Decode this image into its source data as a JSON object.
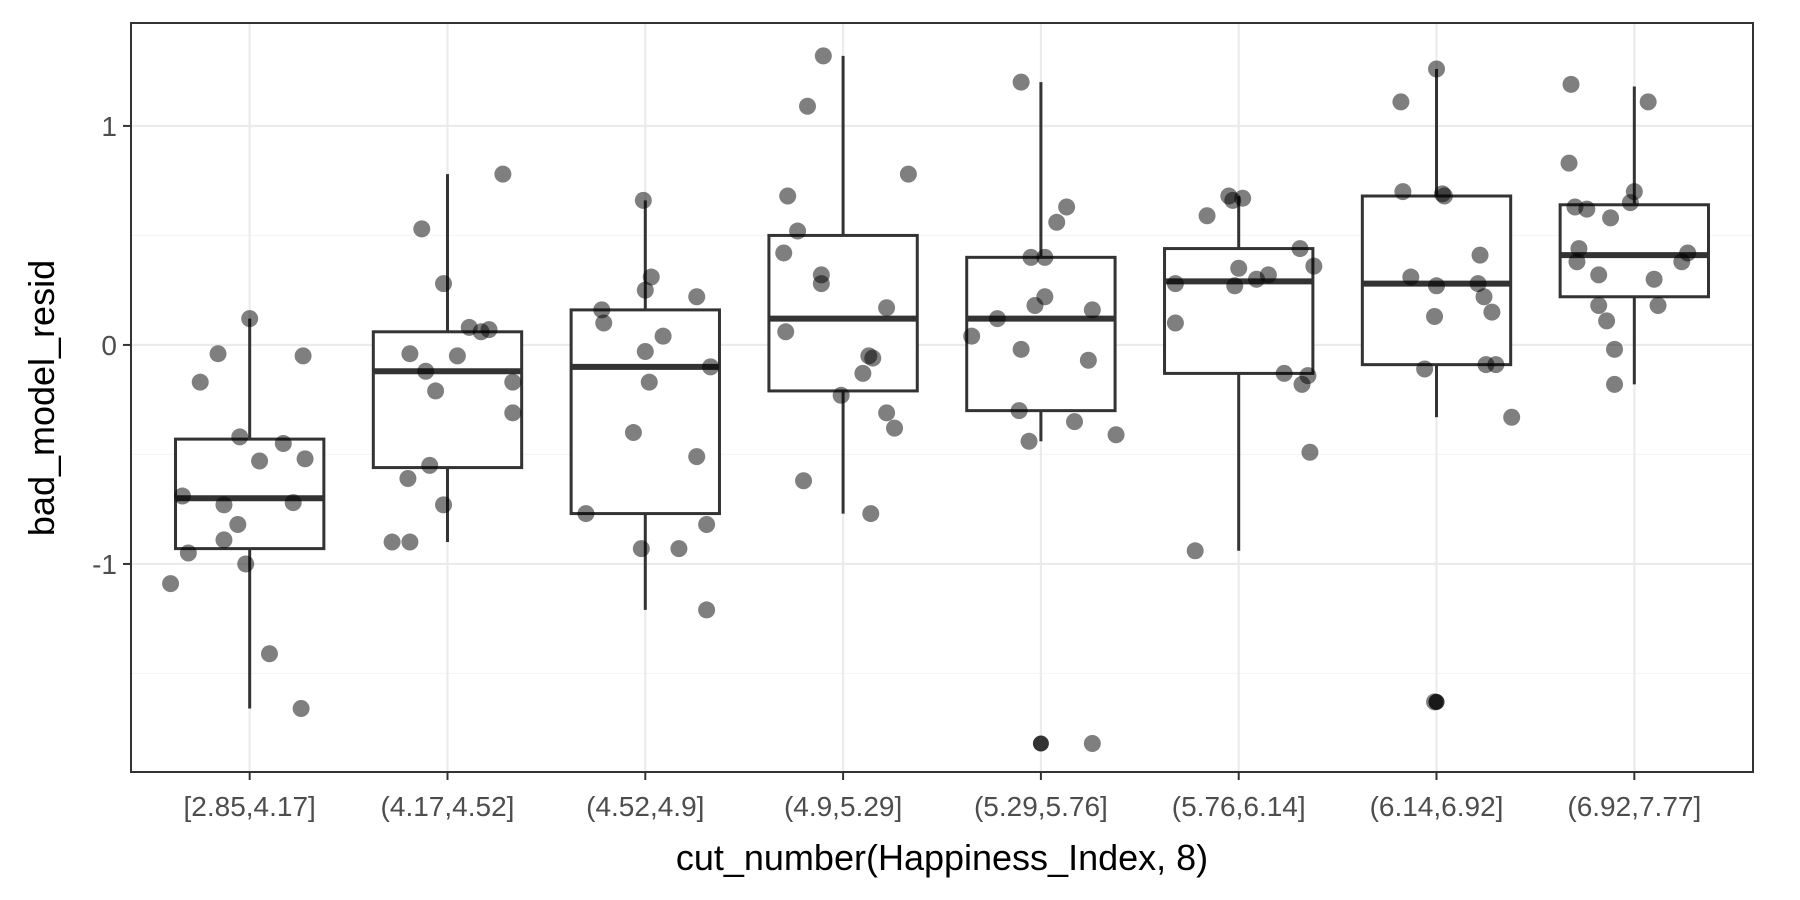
{
  "chart_data": {
    "type": "boxplot",
    "xlabel": "cut_number(Happiness_Index, 8)",
    "ylabel": "bad_model_resid",
    "ylim": [
      -1.95,
      1.47
    ],
    "yticks": [
      1,
      0,
      -1
    ],
    "ytick_labels": [
      "1",
      "0",
      "-1"
    ],
    "grid": true,
    "categories": [
      "[2.85,4.17]",
      "(4.17,4.52]",
      "(4.52,4.9]",
      "(4.9,5.29]",
      "(5.29,5.76]",
      "(5.76,6.14]",
      "(6.14,6.92]",
      "(6.92,7.77]"
    ],
    "boxes": [
      {
        "whisker_low": -1.66,
        "q1": -0.93,
        "median": -0.7,
        "q3": -0.43,
        "whisker_high": 0.12
      },
      {
        "whisker_low": -0.9,
        "q1": -0.56,
        "median": -0.12,
        "q3": 0.06,
        "whisker_high": 0.78
      },
      {
        "whisker_low": -1.21,
        "q1": -0.77,
        "median": -0.1,
        "q3": 0.16,
        "whisker_high": 0.66
      },
      {
        "whisker_low": -0.77,
        "q1": -0.21,
        "median": 0.12,
        "q3": 0.5,
        "whisker_high": 1.32
      },
      {
        "whisker_low": -0.44,
        "q1": -0.3,
        "median": 0.12,
        "q3": 0.4,
        "whisker_high": 1.2
      },
      {
        "whisker_low": -0.94,
        "q1": -0.13,
        "median": 0.29,
        "q3": 0.44,
        "whisker_high": 0.68
      },
      {
        "whisker_low": -0.33,
        "q1": -0.09,
        "median": 0.28,
        "q3": 0.68,
        "whisker_high": 1.26
      },
      {
        "whisker_low": -0.18,
        "q1": 0.22,
        "median": 0.41,
        "q3": 0.64,
        "whisker_high": 1.18
      }
    ],
    "outliers": [
      {
        "group": 4,
        "y": -1.82
      },
      {
        "group": 6,
        "y": -1.63
      }
    ],
    "points": [
      {
        "x": 0.6,
        "y": -1.09
      },
      {
        "x": 0.66,
        "y": -0.69
      },
      {
        "x": 0.69,
        "y": -0.95
      },
      {
        "x": 0.75,
        "y": -0.17
      },
      {
        "x": 0.87,
        "y": -0.73
      },
      {
        "x": 0.87,
        "y": -0.89
      },
      {
        "x": 0.94,
        "y": -0.82
      },
      {
        "x": 0.95,
        "y": -0.42
      },
      {
        "x": 1.0,
        "y": 0.12
      },
      {
        "x": 0.84,
        "y": -0.04
      },
      {
        "x": 0.98,
        "y": -1.0
      },
      {
        "x": 1.05,
        "y": -0.53
      },
      {
        "x": 1.1,
        "y": -1.41
      },
      {
        "x": 1.17,
        "y": -0.45
      },
      {
        "x": 1.22,
        "y": -0.72
      },
      {
        "x": 1.26,
        "y": -1.66
      },
      {
        "x": 1.27,
        "y": -0.05
      },
      {
        "x": 1.28,
        "y": -0.52
      },
      {
        "x": 1.72,
        "y": -0.9
      },
      {
        "x": 1.81,
        "y": -0.9
      },
      {
        "x": 1.8,
        "y": -0.61
      },
      {
        "x": 1.81,
        "y": -0.04
      },
      {
        "x": 1.87,
        "y": 0.53
      },
      {
        "x": 1.91,
        "y": -0.55
      },
      {
        "x": 1.89,
        "y": -0.12
      },
      {
        "x": 1.94,
        "y": -0.21
      },
      {
        "x": 1.98,
        "y": -0.73
      },
      {
        "x": 1.98,
        "y": 0.28
      },
      {
        "x": 2.05,
        "y": -0.05
      },
      {
        "x": 2.11,
        "y": 0.08
      },
      {
        "x": 2.17,
        "y": 0.06
      },
      {
        "x": 2.21,
        "y": 0.07
      },
      {
        "x": 2.28,
        "y": 0.78
      },
      {
        "x": 2.33,
        "y": -0.17
      },
      {
        "x": 2.33,
        "y": -0.31
      },
      {
        "x": 2.7,
        "y": -0.77
      },
      {
        "x": 2.78,
        "y": 0.16
      },
      {
        "x": 2.79,
        "y": 0.1
      },
      {
        "x": 2.94,
        "y": -0.4
      },
      {
        "x": 2.99,
        "y": 0.66
      },
      {
        "x": 2.98,
        "y": -0.93
      },
      {
        "x": 3.0,
        "y": -0.03
      },
      {
        "x": 3.0,
        "y": 0.25
      },
      {
        "x": 3.03,
        "y": 0.31
      },
      {
        "x": 3.02,
        "y": -0.17
      },
      {
        "x": 3.09,
        "y": 0.04
      },
      {
        "x": 3.17,
        "y": -0.93
      },
      {
        "x": 3.26,
        "y": 0.22
      },
      {
        "x": 3.26,
        "y": -0.51
      },
      {
        "x": 3.31,
        "y": -0.82
      },
      {
        "x": 3.31,
        "y": -1.21
      },
      {
        "x": 3.33,
        "y": -0.1
      },
      {
        "x": 3.7,
        "y": 0.42
      },
      {
        "x": 3.71,
        "y": 0.06
      },
      {
        "x": 3.72,
        "y": 0.68
      },
      {
        "x": 3.8,
        "y": -0.62
      },
      {
        "x": 3.77,
        "y": 0.52
      },
      {
        "x": 3.82,
        "y": 1.09
      },
      {
        "x": 3.9,
        "y": 1.32
      },
      {
        "x": 3.89,
        "y": 0.32
      },
      {
        "x": 3.89,
        "y": 0.28
      },
      {
        "x": 3.99,
        "y": -0.23
      },
      {
        "x": 4.1,
        "y": -0.13
      },
      {
        "x": 4.13,
        "y": -0.05
      },
      {
        "x": 4.15,
        "y": -0.06
      },
      {
        "x": 4.14,
        "y": -0.77
      },
      {
        "x": 4.22,
        "y": 0.17
      },
      {
        "x": 4.22,
        "y": -0.31
      },
      {
        "x": 4.26,
        "y": -0.38
      },
      {
        "x": 4.33,
        "y": 0.78
      },
      {
        "x": 4.65,
        "y": 0.04
      },
      {
        "x": 4.78,
        "y": 0.12
      },
      {
        "x": 4.9,
        "y": -0.02
      },
      {
        "x": 4.89,
        "y": -0.3
      },
      {
        "x": 4.9,
        "y": 1.2
      },
      {
        "x": 4.94,
        "y": -0.44
      },
      {
        "x": 4.95,
        "y": 0.4
      },
      {
        "x": 4.97,
        "y": 0.18
      },
      {
        "x": 5.02,
        "y": 0.22
      },
      {
        "x": 5.02,
        "y": 0.4
      },
      {
        "x": 5.08,
        "y": 0.56
      },
      {
        "x": 5.13,
        "y": 0.63
      },
      {
        "x": 5.17,
        "y": -0.35
      },
      {
        "x": 5.26,
        "y": 0.16
      },
      {
        "x": 5.24,
        "y": -0.07
      },
      {
        "x": 5.26,
        "y": -1.82
      },
      {
        "x": 5.38,
        "y": -0.41
      },
      {
        "x": 5.68,
        "y": 0.28
      },
      {
        "x": 5.68,
        "y": 0.1
      },
      {
        "x": 5.78,
        "y": -0.94
      },
      {
        "x": 5.84,
        "y": 0.59
      },
      {
        "x": 5.95,
        "y": 0.68
      },
      {
        "x": 5.97,
        "y": 0.66
      },
      {
        "x": 6.0,
        "y": 0.35
      },
      {
        "x": 5.98,
        "y": 0.27
      },
      {
        "x": 6.02,
        "y": 0.67
      },
      {
        "x": 6.09,
        "y": 0.3
      },
      {
        "x": 6.15,
        "y": 0.32
      },
      {
        "x": 6.31,
        "y": 0.44
      },
      {
        "x": 6.23,
        "y": -0.13
      },
      {
        "x": 6.32,
        "y": -0.18
      },
      {
        "x": 6.35,
        "y": -0.14
      },
      {
        "x": 6.36,
        "y": -0.49
      },
      {
        "x": 6.38,
        "y": 0.36
      },
      {
        "x": 6.83,
        "y": 0.7
      },
      {
        "x": 6.82,
        "y": 1.11
      },
      {
        "x": 6.87,
        "y": 0.31
      },
      {
        "x": 6.94,
        "y": -0.11
      },
      {
        "x": 6.99,
        "y": -1.63
      },
      {
        "x": 7.0,
        "y": 1.26
      },
      {
        "x": 7.03,
        "y": 0.69
      },
      {
        "x": 7.04,
        "y": 0.68
      },
      {
        "x": 6.99,
        "y": 0.13
      },
      {
        "x": 7.0,
        "y": 0.27
      },
      {
        "x": 7.22,
        "y": 0.41
      },
      {
        "x": 7.21,
        "y": 0.28
      },
      {
        "x": 7.24,
        "y": 0.22
      },
      {
        "x": 7.28,
        "y": 0.15
      },
      {
        "x": 7.25,
        "y": -0.09
      },
      {
        "x": 7.3,
        "y": -0.09
      },
      {
        "x": 7.38,
        "y": -0.33
      },
      {
        "x": 7.68,
        "y": 1.19
      },
      {
        "x": 7.67,
        "y": 0.83
      },
      {
        "x": 7.7,
        "y": 0.63
      },
      {
        "x": 7.72,
        "y": 0.44
      },
      {
        "x": 7.71,
        "y": 0.38
      },
      {
        "x": 7.76,
        "y": 0.62
      },
      {
        "x": 7.88,
        "y": 0.58
      },
      {
        "x": 7.82,
        "y": 0.32
      },
      {
        "x": 7.82,
        "y": 0.18
      },
      {
        "x": 7.86,
        "y": 0.11
      },
      {
        "x": 7.9,
        "y": -0.02
      },
      {
        "x": 7.9,
        "y": -0.18
      },
      {
        "x": 7.98,
        "y": 0.65
      },
      {
        "x": 8.0,
        "y": 0.7
      },
      {
        "x": 8.07,
        "y": 1.11
      },
      {
        "x": 8.1,
        "y": 0.3
      },
      {
        "x": 8.12,
        "y": 0.18
      },
      {
        "x": 8.24,
        "y": 0.38
      },
      {
        "x": 8.27,
        "y": 0.42
      }
    ],
    "colors": {
      "point": "#000000",
      "point_alpha": 0.5,
      "box_stroke": "#333333",
      "grid_major": "#ebebeb",
      "grid_minor": "#f5f5f5",
      "outlier": "#333333"
    }
  }
}
